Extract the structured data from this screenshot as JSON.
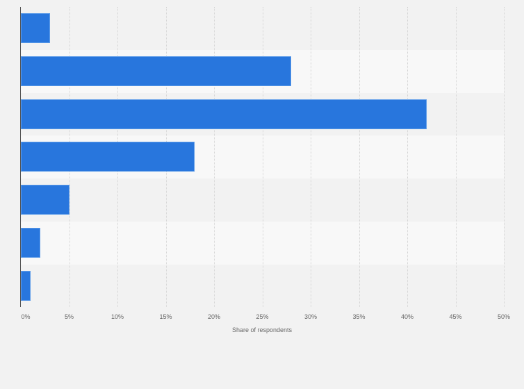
{
  "chart_data": {
    "type": "bar",
    "orientation": "horizontal",
    "title": "",
    "xlabel": "Share of respondents",
    "ylabel": "",
    "categories": [
      "",
      "",
      "",
      "",
      "",
      "",
      ""
    ],
    "values": [
      3,
      28,
      42,
      18,
      5,
      2,
      1
    ],
    "value_unit": "%",
    "xlim": [
      0,
      50
    ],
    "x_ticks": [
      "0%",
      "5%",
      "10%",
      "15%",
      "20%",
      "25%",
      "30%",
      "35%",
      "40%",
      "45%",
      "50%"
    ],
    "grid": true,
    "legend": null,
    "bar_color": "#2876dd"
  }
}
